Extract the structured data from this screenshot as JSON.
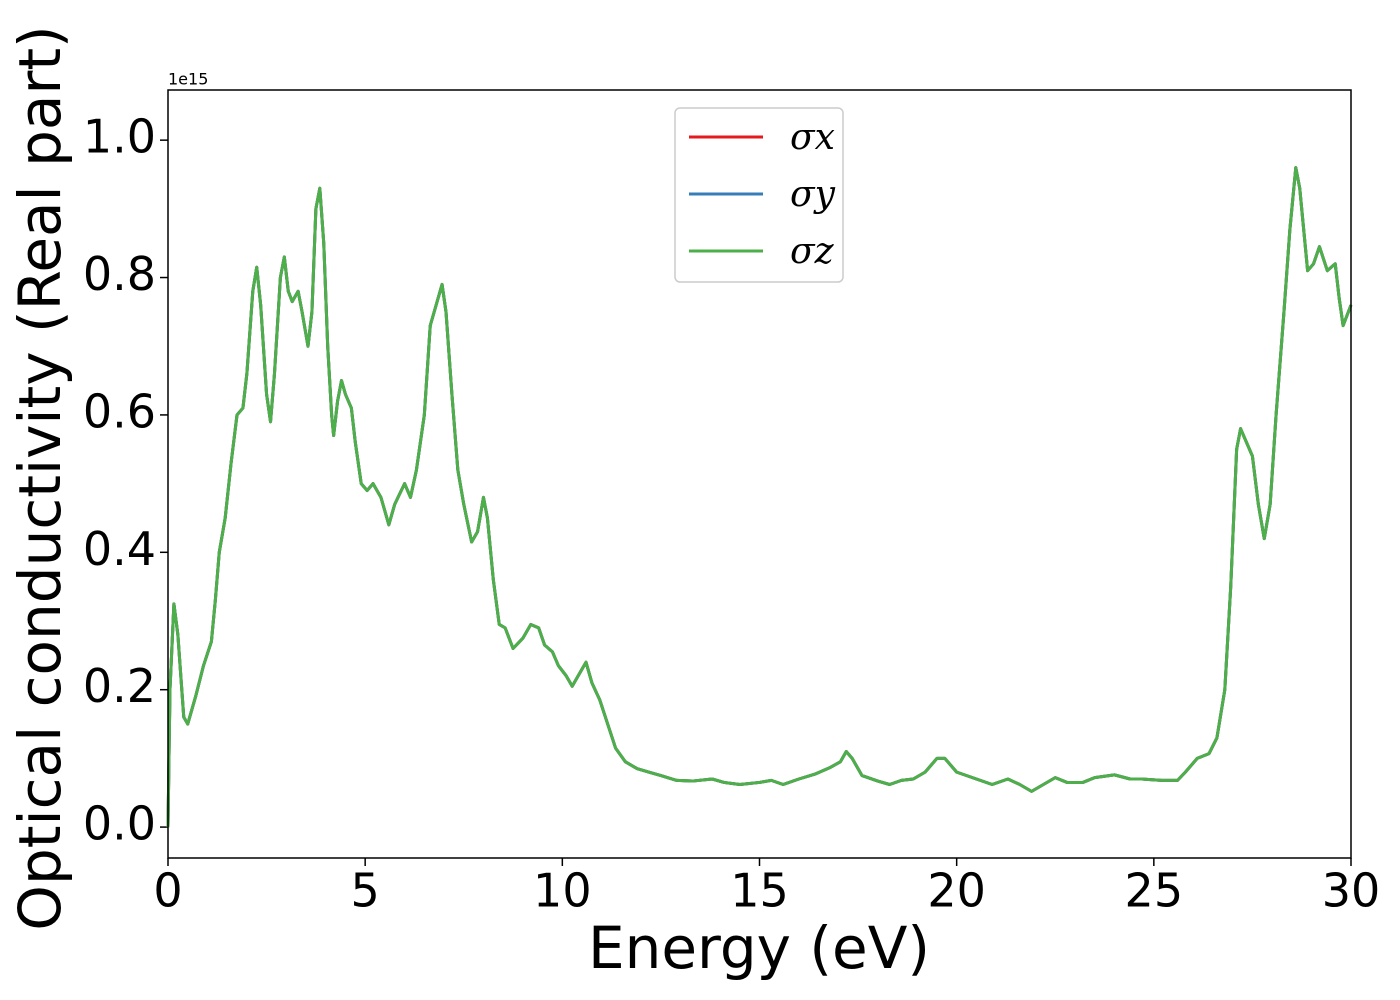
{
  "chart_data": {
    "type": "line",
    "ylabel": "Optical conductivity (Real part)",
    "xlabel": "Energy (eV)",
    "offset_label": "1e15",
    "xlim": [
      0,
      30
    ],
    "xticks": [
      0,
      5,
      10,
      15,
      20,
      25,
      30
    ],
    "ylim": [
      -0.045,
      1.073
    ],
    "yticks": [
      {
        "value": 0,
        "label": "0.0"
      },
      0.2,
      0.4,
      0.6,
      0.8,
      {
        "value": 1,
        "label": "1.0"
      }
    ],
    "legend": "upper center",
    "x": [
      0,
      0.05,
      0.15,
      0.25,
      0.4,
      0.5,
      0.7,
      0.9,
      1.1,
      1.2,
      1.3,
      1.45,
      1.6,
      1.75,
      1.9,
      2.0,
      2.15,
      2.25,
      2.35,
      2.5,
      2.6,
      2.7,
      2.85,
      2.95,
      3.05,
      3.15,
      3.3,
      3.4,
      3.55,
      3.65,
      3.75,
      3.85,
      3.95,
      4.05,
      4.15,
      4.2,
      4.3,
      4.4,
      4.5,
      4.65,
      4.75,
      4.9,
      5.05,
      5.2,
      5.4,
      5.6,
      5.75,
      6.0,
      6.15,
      6.3,
      6.5,
      6.65,
      6.8,
      6.95,
      7.05,
      7.2,
      7.35,
      7.5,
      7.7,
      7.85,
      8.0,
      8.1,
      8.25,
      8.4,
      8.55,
      8.75,
      9.0,
      9.2,
      9.4,
      9.55,
      9.75,
      9.9,
      10.1,
      10.25,
      10.45,
      10.6,
      10.75,
      10.95,
      11.15,
      11.35,
      11.6,
      11.9,
      12.2,
      12.5,
      12.9,
      13.3,
      13.8,
      14.1,
      14.5,
      15.0,
      15.3,
      15.6,
      16.0,
      16.4,
      16.8,
      17.05,
      17.2,
      17.35,
      17.6,
      18.0,
      18.3,
      18.6,
      18.9,
      19.2,
      19.5,
      19.7,
      20.0,
      20.4,
      20.9,
      21.3,
      21.6,
      21.9,
      22.2,
      22.5,
      22.8,
      23.2,
      23.5,
      24.0,
      24.4,
      24.7,
      25.2,
      25.6,
      25.8,
      26.1,
      26.4,
      26.6,
      26.8,
      26.95,
      27.1,
      27.2,
      27.35,
      27.5,
      27.65,
      27.8,
      27.95,
      28.1,
      28.3,
      28.45,
      28.6,
      28.7,
      28.9,
      29.05,
      29.2,
      29.4,
      29.6,
      29.7,
      29.8,
      30.0
    ],
    "series": [
      {
        "name": "σx",
        "color": "#e41a1c",
        "values": [
          0,
          0.2,
          0.325,
          0.28,
          0.16,
          0.15,
          0.19,
          0.235,
          0.27,
          0.33,
          0.4,
          0.45,
          0.53,
          0.6,
          0.61,
          0.66,
          0.78,
          0.815,
          0.76,
          0.63,
          0.59,
          0.66,
          0.8,
          0.83,
          0.78,
          0.765,
          0.78,
          0.75,
          0.7,
          0.75,
          0.9,
          0.93,
          0.85,
          0.7,
          0.6,
          0.57,
          0.62,
          0.65,
          0.63,
          0.61,
          0.56,
          0.5,
          0.49,
          0.5,
          0.48,
          0.44,
          0.47,
          0.5,
          0.48,
          0.52,
          0.6,
          0.73,
          0.76,
          0.79,
          0.75,
          0.63,
          0.52,
          0.47,
          0.415,
          0.43,
          0.48,
          0.45,
          0.36,
          0.295,
          0.29,
          0.26,
          0.275,
          0.295,
          0.29,
          0.265,
          0.255,
          0.235,
          0.22,
          0.205,
          0.225,
          0.24,
          0.21,
          0.185,
          0.15,
          0.115,
          0.095,
          0.085,
          0.08,
          0.075,
          0.068,
          0.067,
          0.07,
          0.065,
          0.062,
          0.065,
          0.068,
          0.062,
          0.07,
          0.077,
          0.087,
          0.095,
          0.11,
          0.1,
          0.075,
          0.067,
          0.062,
          0.068,
          0.07,
          0.08,
          0.1,
          0.1,
          0.08,
          0.072,
          0.062,
          0.07,
          0.062,
          0.052,
          0.062,
          0.072,
          0.065,
          0.065,
          0.072,
          0.076,
          0.07,
          0.07,
          0.068,
          0.068,
          0.08,
          0.1,
          0.107,
          0.13,
          0.2,
          0.35,
          0.55,
          0.58,
          0.56,
          0.54,
          0.47,
          0.42,
          0.47,
          0.6,
          0.75,
          0.87,
          0.96,
          0.93,
          0.81,
          0.82,
          0.845,
          0.81,
          0.82,
          0.77,
          0.73,
          0.76
        ]
      },
      {
        "name": "σy",
        "color": "#377eb8",
        "values": [
          0,
          0.2,
          0.325,
          0.28,
          0.16,
          0.15,
          0.19,
          0.235,
          0.27,
          0.33,
          0.4,
          0.45,
          0.53,
          0.6,
          0.61,
          0.66,
          0.78,
          0.815,
          0.76,
          0.63,
          0.59,
          0.66,
          0.8,
          0.83,
          0.78,
          0.765,
          0.78,
          0.75,
          0.7,
          0.75,
          0.9,
          0.93,
          0.85,
          0.7,
          0.6,
          0.57,
          0.62,
          0.65,
          0.63,
          0.61,
          0.56,
          0.5,
          0.49,
          0.5,
          0.48,
          0.44,
          0.47,
          0.5,
          0.48,
          0.52,
          0.6,
          0.73,
          0.76,
          0.79,
          0.75,
          0.63,
          0.52,
          0.47,
          0.415,
          0.43,
          0.48,
          0.45,
          0.36,
          0.295,
          0.29,
          0.26,
          0.275,
          0.295,
          0.29,
          0.265,
          0.255,
          0.235,
          0.22,
          0.205,
          0.225,
          0.24,
          0.21,
          0.185,
          0.15,
          0.115,
          0.095,
          0.085,
          0.08,
          0.075,
          0.068,
          0.067,
          0.07,
          0.065,
          0.062,
          0.065,
          0.068,
          0.062,
          0.07,
          0.077,
          0.087,
          0.095,
          0.11,
          0.1,
          0.075,
          0.067,
          0.062,
          0.068,
          0.07,
          0.08,
          0.1,
          0.1,
          0.08,
          0.072,
          0.062,
          0.07,
          0.062,
          0.052,
          0.062,
          0.072,
          0.065,
          0.065,
          0.072,
          0.076,
          0.07,
          0.07,
          0.068,
          0.068,
          0.08,
          0.1,
          0.107,
          0.13,
          0.2,
          0.35,
          0.55,
          0.58,
          0.56,
          0.54,
          0.47,
          0.42,
          0.47,
          0.6,
          0.75,
          0.87,
          0.96,
          0.93,
          0.81,
          0.82,
          0.845,
          0.81,
          0.82,
          0.77,
          0.73,
          0.76
        ]
      },
      {
        "name": "σz",
        "color": "#4daf4a",
        "values": [
          0,
          0.2,
          0.325,
          0.28,
          0.16,
          0.15,
          0.19,
          0.235,
          0.27,
          0.33,
          0.4,
          0.45,
          0.53,
          0.6,
          0.61,
          0.66,
          0.78,
          0.815,
          0.76,
          0.63,
          0.59,
          0.66,
          0.8,
          0.83,
          0.78,
          0.765,
          0.78,
          0.75,
          0.7,
          0.75,
          0.9,
          0.93,
          0.85,
          0.7,
          0.6,
          0.57,
          0.62,
          0.65,
          0.63,
          0.61,
          0.56,
          0.5,
          0.49,
          0.5,
          0.48,
          0.44,
          0.47,
          0.5,
          0.48,
          0.52,
          0.6,
          0.73,
          0.76,
          0.79,
          0.75,
          0.63,
          0.52,
          0.47,
          0.415,
          0.43,
          0.48,
          0.45,
          0.36,
          0.295,
          0.29,
          0.26,
          0.275,
          0.295,
          0.29,
          0.265,
          0.255,
          0.235,
          0.22,
          0.205,
          0.225,
          0.24,
          0.21,
          0.185,
          0.15,
          0.115,
          0.095,
          0.085,
          0.08,
          0.075,
          0.068,
          0.067,
          0.07,
          0.065,
          0.062,
          0.065,
          0.068,
          0.062,
          0.07,
          0.077,
          0.087,
          0.095,
          0.11,
          0.1,
          0.075,
          0.067,
          0.062,
          0.068,
          0.07,
          0.08,
          0.1,
          0.1,
          0.08,
          0.072,
          0.062,
          0.07,
          0.062,
          0.052,
          0.062,
          0.072,
          0.065,
          0.065,
          0.072,
          0.076,
          0.07,
          0.07,
          0.068,
          0.068,
          0.08,
          0.1,
          0.107,
          0.13,
          0.2,
          0.35,
          0.55,
          0.58,
          0.56,
          0.54,
          0.47,
          0.42,
          0.47,
          0.6,
          0.75,
          0.87,
          0.96,
          0.93,
          0.81,
          0.82,
          0.845,
          0.81,
          0.82,
          0.77,
          0.73,
          0.76
        ]
      }
    ]
  }
}
